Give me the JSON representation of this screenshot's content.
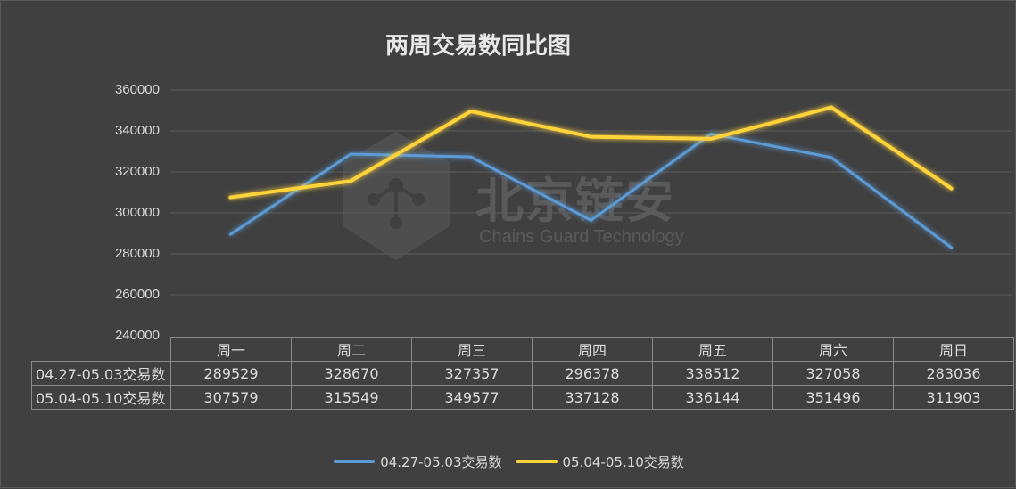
{
  "chart_data": {
    "type": "line",
    "title": "两周交易数同比图",
    "categories": [
      "周一",
      "周二",
      "周三",
      "周四",
      "周五",
      "周六",
      "周日"
    ],
    "series": [
      {
        "name": "04.27-05.03交易数",
        "color": "#5b9bd5",
        "values": [
          289529,
          328670,
          327357,
          296378,
          338512,
          327058,
          283036
        ]
      },
      {
        "name": "05.04-05.10交易数",
        "color": "#ffd43b",
        "values": [
          307579,
          315549,
          349577,
          337128,
          336144,
          351496,
          311903
        ]
      }
    ],
    "ylim": [
      240000,
      360000
    ],
    "yticks": [
      "240000",
      "260000",
      "280000",
      "300000",
      "320000",
      "340000",
      "360000"
    ],
    "grid": true,
    "legend_position": "bottom"
  },
  "watermark": {
    "text": "北京链安",
    "subtext": "Chains Guard Technology"
  }
}
